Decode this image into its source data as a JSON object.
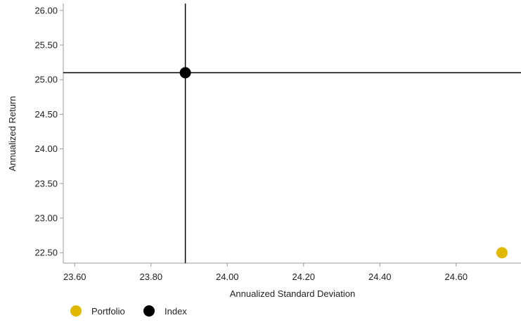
{
  "chart_data": {
    "type": "scatter",
    "title": "",
    "xlabel": "Annualized Standard Deviation",
    "ylabel": "Annualized Return",
    "xlim": [
      23.57,
      24.77
    ],
    "ylim": [
      22.35,
      26.1
    ],
    "x_ticks": [
      23.6,
      23.8,
      24.0,
      24.2,
      24.4,
      24.6
    ],
    "x_tick_labels": [
      "23.60",
      "23.80",
      "24.00",
      "24.20",
      "24.40",
      "24.60"
    ],
    "y_ticks": [
      22.5,
      23.0,
      23.5,
      24.0,
      24.5,
      25.0,
      25.5,
      26.0
    ],
    "y_tick_labels": [
      "22.50",
      "23.00",
      "23.50",
      "24.00",
      "24.50",
      "25.00",
      "25.50",
      "26.00"
    ],
    "grid": false,
    "legend_position": "bottom-left",
    "crosshair": {
      "x": 23.89,
      "y": 25.1
    },
    "series": [
      {
        "name": "Portfolio",
        "color": "#e0b800",
        "points": [
          {
            "x": 24.72,
            "y": 22.5
          }
        ]
      },
      {
        "name": "Index",
        "color": "#000000",
        "points": [
          {
            "x": 23.89,
            "y": 25.1
          }
        ]
      }
    ]
  }
}
